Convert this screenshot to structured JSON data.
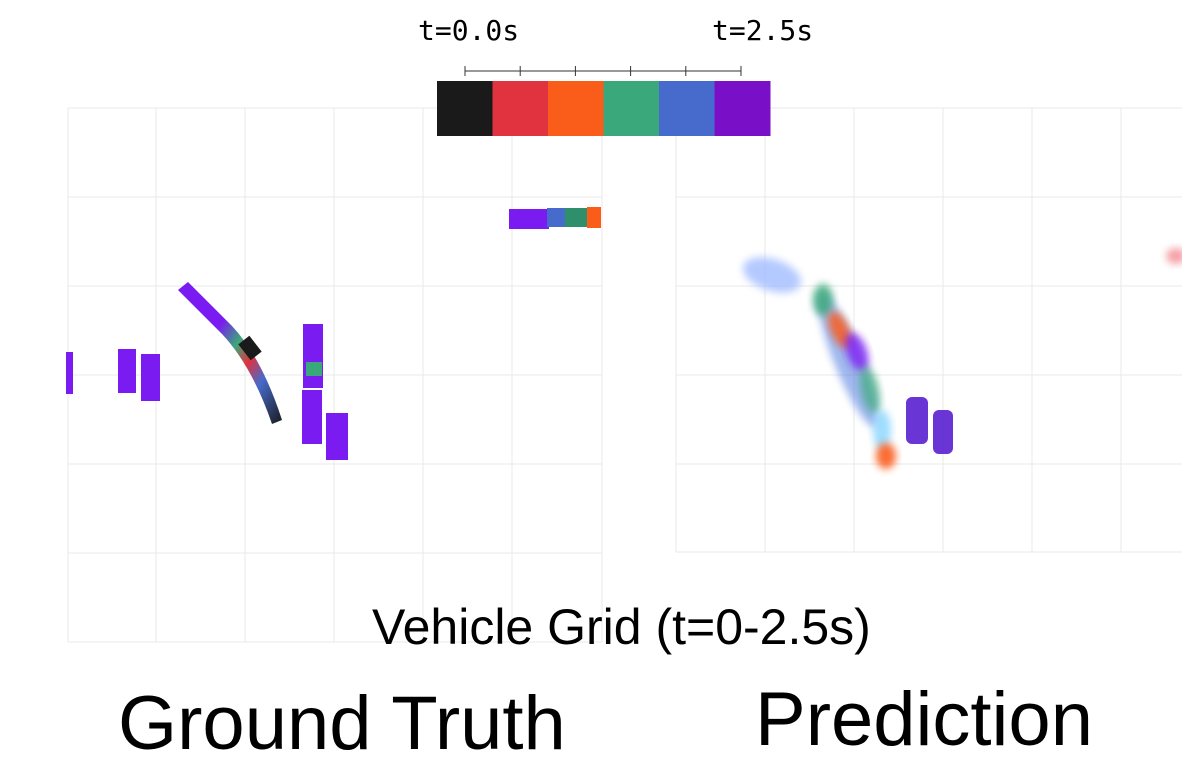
{
  "colorbar": {
    "start_label": "t=0.0s",
    "end_label": "t=2.5s",
    "colors": [
      "#1a1a1a",
      "#e0323f",
      "#fa5d1a",
      "#3aa87a",
      "#466bcc",
      "#7a0fc8"
    ]
  },
  "caption": "Vehicle Grid (t=0-2.5s)",
  "panels": {
    "ground_truth": {
      "title": "Ground Truth"
    },
    "prediction": {
      "title": "Prediction"
    }
  },
  "colors": {
    "vehicle": "#7a1bf2",
    "grid": "#e8e8e8"
  }
}
